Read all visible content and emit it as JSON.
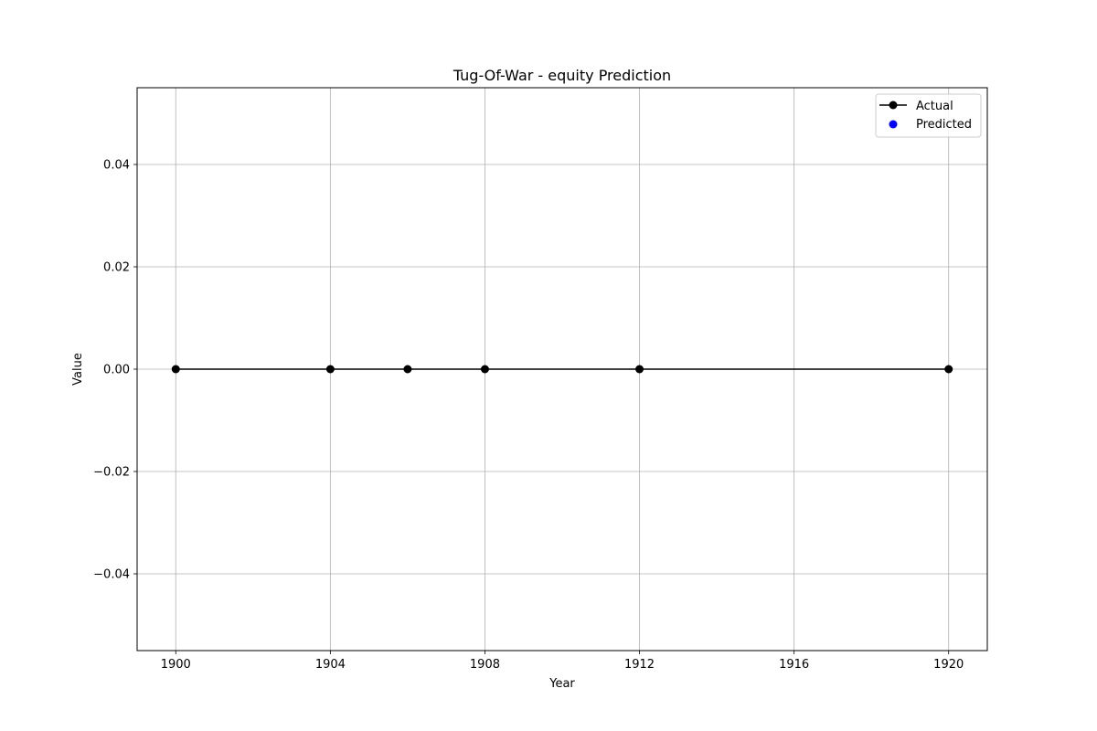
{
  "chart_data": {
    "type": "line",
    "title": "Tug-Of-War - equity Prediction",
    "xlabel": "Year",
    "ylabel": "Value",
    "xlim": [
      1899,
      1921
    ],
    "ylim": [
      -0.055,
      0.055
    ],
    "xticks": [
      1900,
      1904,
      1908,
      1912,
      1916,
      1920
    ],
    "xtick_labels": [
      "1900",
      "1904",
      "1908",
      "1912",
      "1916",
      "1920"
    ],
    "yticks": [
      -0.04,
      -0.02,
      0.0,
      0.02,
      0.04
    ],
    "ytick_labels": [
      "−0.04",
      "−0.02",
      "0.00",
      "0.02",
      "0.04"
    ],
    "grid": true,
    "legend_position": "top-right",
    "series": [
      {
        "name": "Actual",
        "style": "line-with-markers",
        "color": "#000000",
        "x": [
          1900,
          1904,
          1906,
          1908,
          1912,
          1920
        ],
        "y": [
          0,
          0,
          0,
          0,
          0,
          0
        ]
      },
      {
        "name": "Predicted",
        "style": "scatter",
        "color": "#0000ff",
        "x": [],
        "y": []
      }
    ]
  }
}
